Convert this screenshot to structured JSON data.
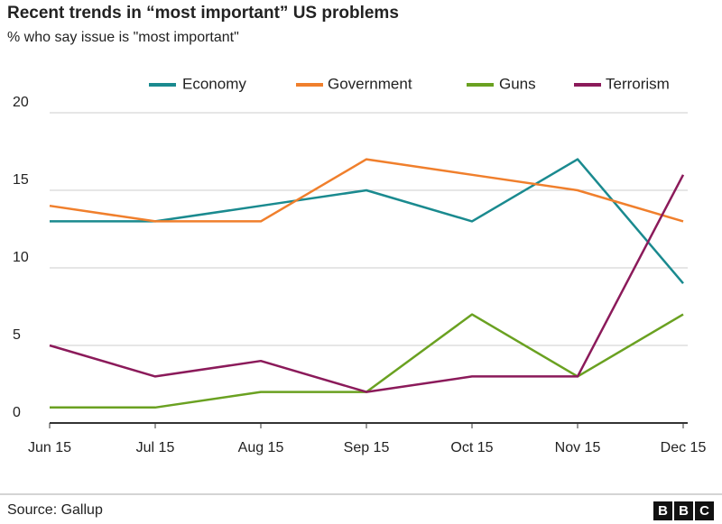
{
  "chart_data": {
    "type": "line",
    "title": "Recent trends in “most important” US problems",
    "subtitle": "% who say issue is \"most important\"",
    "categories": [
      "Jun 15",
      "Jul 15",
      "Aug 15",
      "Sep 15",
      "Oct 15",
      "Nov 15",
      "Dec 15"
    ],
    "series": [
      {
        "name": "Economy",
        "color": "#1a8a8f",
        "values": [
          13,
          13,
          14,
          15,
          13,
          17,
          9
        ]
      },
      {
        "name": "Government",
        "color": "#f07f2c",
        "values": [
          14,
          13,
          13,
          17,
          16,
          15,
          13
        ]
      },
      {
        "name": "Guns",
        "color": "#6aa121",
        "values": [
          1,
          1,
          2,
          2,
          7,
          3,
          7
        ]
      },
      {
        "name": "Terrorism",
        "color": "#8b1a5a",
        "values": [
          5,
          3,
          4,
          2,
          3,
          3,
          16
        ]
      }
    ],
    "ylim": [
      0,
      20
    ],
    "yticks": [
      0,
      5,
      10,
      15,
      20
    ],
    "grid": true,
    "source": "Source: Gallup",
    "logo": [
      "B",
      "B",
      "C"
    ]
  }
}
